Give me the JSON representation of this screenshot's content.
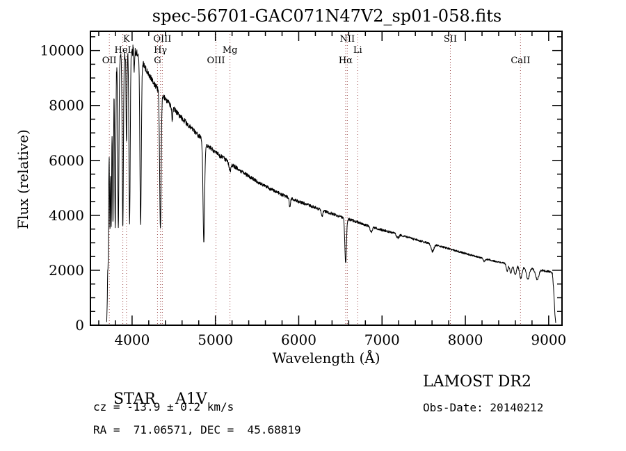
{
  "chart_data": {
    "type": "line",
    "title": "spec-56701-GAC071N47V2_sp01-058.fits",
    "xlabel": "Wavelength (Å)",
    "ylabel": "Flux (relative)",
    "xlim": [
      3500,
      9160
    ],
    "ylim": [
      0,
      10700
    ],
    "x_ticks": [
      4000,
      5000,
      6000,
      7000,
      8000,
      9000
    ],
    "y_ticks": [
      0,
      2000,
      4000,
      6000,
      8000,
      10000
    ],
    "x_minor_step": 200,
    "y_minor_step": 500,
    "grid": false,
    "legend": "none",
    "line_color": "#000000",
    "marker_line_color": "#9e4b4b",
    "spectral_markers": [
      {
        "label": "OII",
        "wavelength": 3727,
        "row": 2
      },
      {
        "label": "HeI",
        "wavelength": 3889,
        "row": 1
      },
      {
        "label": "K",
        "wavelength": 3933,
        "row": 0
      },
      {
        "label": "G",
        "wavelength": 4305,
        "row": 2
      },
      {
        "label": "Hγ",
        "wavelength": 4340,
        "row": 1
      },
      {
        "label": "OIII",
        "wavelength": 4363,
        "row": 0
      },
      {
        "label": "OIII",
        "wavelength": 5007,
        "row": 2
      },
      {
        "label": "Mg",
        "wavelength": 5175,
        "row": 1
      },
      {
        "label": "Hα",
        "wavelength": 6563,
        "row": 2
      },
      {
        "label": "NII",
        "wavelength": 6583,
        "row": 0
      },
      {
        "label": "Li",
        "wavelength": 6708,
        "row": 1
      },
      {
        "label": "SII",
        "wavelength": 7820,
        "row": 0
      },
      {
        "label": "CaII",
        "wavelength": 8662,
        "row": 2
      }
    ],
    "wave_start": 3695,
    "wave_end": 9085,
    "sample_step": 2.5,
    "noise_base": 0.013,
    "noise_blue": 0.022,
    "noise_red": 0.02,
    "continuum": [
      [
        3695,
        120
      ],
      [
        3702,
        900
      ],
      [
        3708,
        3200
      ],
      [
        3716,
        5600
      ],
      [
        3726,
        7000
      ],
      [
        3738,
        8100
      ],
      [
        3752,
        8800
      ],
      [
        3770,
        9200
      ],
      [
        3800,
        9500
      ],
      [
        3840,
        9700
      ],
      [
        3880,
        9800
      ],
      [
        3920,
        9900
      ],
      [
        3960,
        10000
      ],
      [
        4000,
        10020
      ],
      [
        4040,
        9950
      ],
      [
        4090,
        9800
      ],
      [
        4140,
        9500
      ],
      [
        4190,
        9200
      ],
      [
        4250,
        8850
      ],
      [
        4320,
        8550
      ],
      [
        4400,
        8250
      ],
      [
        4480,
        7950
      ],
      [
        4560,
        7650
      ],
      [
        4640,
        7400
      ],
      [
        4720,
        7150
      ],
      [
        4800,
        6900
      ],
      [
        4880,
        6600
      ],
      [
        4960,
        6400
      ],
      [
        5040,
        6200
      ],
      [
        5120,
        6030
      ],
      [
        5200,
        5850
      ],
      [
        5300,
        5620
      ],
      [
        5400,
        5420
      ],
      [
        5500,
        5230
      ],
      [
        5600,
        5060
      ],
      [
        5700,
        4900
      ],
      [
        5800,
        4750
      ],
      [
        5900,
        4620
      ],
      [
        6000,
        4500
      ],
      [
        6100,
        4390
      ],
      [
        6200,
        4280
      ],
      [
        6300,
        4170
      ],
      [
        6400,
        4060
      ],
      [
        6500,
        3950
      ],
      [
        6600,
        3860
      ],
      [
        6700,
        3760
      ],
      [
        6800,
        3650
      ],
      [
        6900,
        3550
      ],
      [
        7000,
        3470
      ],
      [
        7100,
        3390
      ],
      [
        7200,
        3300
      ],
      [
        7300,
        3210
      ],
      [
        7400,
        3120
      ],
      [
        7500,
        3030
      ],
      [
        7600,
        2950
      ],
      [
        7700,
        2870
      ],
      [
        7800,
        2790
      ],
      [
        7900,
        2700
      ],
      [
        8000,
        2610
      ],
      [
        8100,
        2530
      ],
      [
        8200,
        2450
      ],
      [
        8300,
        2370
      ],
      [
        8400,
        2300
      ],
      [
        8500,
        2240
      ],
      [
        8600,
        2180
      ],
      [
        8700,
        2120
      ],
      [
        8800,
        2060
      ],
      [
        8900,
        2010
      ],
      [
        8970,
        1970
      ],
      [
        9020,
        1940
      ],
      [
        9045,
        1880
      ],
      [
        9060,
        1300
      ],
      [
        9075,
        400
      ],
      [
        9085,
        80
      ]
    ],
    "absorption_lines": [
      {
        "center": 3712,
        "depth": 0.5,
        "sigma": 5
      },
      {
        "center": 3734,
        "depth": 0.55,
        "sigma": 5
      },
      {
        "center": 3750,
        "depth": 0.58,
        "sigma": 5.5
      },
      {
        "center": 3771,
        "depth": 0.6,
        "sigma": 6
      },
      {
        "center": 3798,
        "depth": 0.62,
        "sigma": 6.5
      },
      {
        "center": 3835,
        "depth": 0.64,
        "sigma": 7
      },
      {
        "center": 3889,
        "depth": 0.64,
        "sigma": 7
      },
      {
        "center": 3933,
        "depth": 0.34,
        "sigma": 5
      },
      {
        "center": 3970,
        "depth": 0.63,
        "sigma": 7.5
      },
      {
        "center": 4026,
        "depth": 0.07,
        "sigma": 5
      },
      {
        "center": 4102,
        "depth": 0.62,
        "sigma": 8.5
      },
      {
        "center": 4340,
        "depth": 0.58,
        "sigma": 9
      },
      {
        "center": 4481,
        "depth": 0.06,
        "sigma": 6
      },
      {
        "center": 4861,
        "depth": 0.55,
        "sigma": 9.5
      },
      {
        "center": 5175,
        "depth": 0.05,
        "sigma": 10
      },
      {
        "center": 5893,
        "depth": 0.07,
        "sigma": 7
      },
      {
        "center": 6280,
        "depth": 0.05,
        "sigma": 9
      },
      {
        "center": 6563,
        "depth": 0.42,
        "sigma": 10
      },
      {
        "center": 6870,
        "depth": 0.05,
        "sigma": 12
      },
      {
        "center": 7190,
        "depth": 0.04,
        "sigma": 14
      },
      {
        "center": 7605,
        "depth": 0.09,
        "sigma": 16
      },
      {
        "center": 8228,
        "depth": 0.04,
        "sigma": 14
      },
      {
        "center": 8502,
        "depth": 0.12,
        "sigma": 11
      },
      {
        "center": 8545,
        "depth": 0.14,
        "sigma": 12
      },
      {
        "center": 8598,
        "depth": 0.16,
        "sigma": 13
      },
      {
        "center": 8665,
        "depth": 0.2,
        "sigma": 15
      },
      {
        "center": 8750,
        "depth": 0.2,
        "sigma": 17
      },
      {
        "center": 8862,
        "depth": 0.18,
        "sigma": 19
      }
    ]
  },
  "footer": {
    "object_type": "STAR",
    "subclass": "A1V",
    "survey": "LAMOST DR2",
    "cz_line": "cz = -13.9 ± 0.2 km/s",
    "obs_date_line": "Obs-Date: 20140212",
    "radec": "RA =  71.06571, DEC =  45.68819"
  }
}
